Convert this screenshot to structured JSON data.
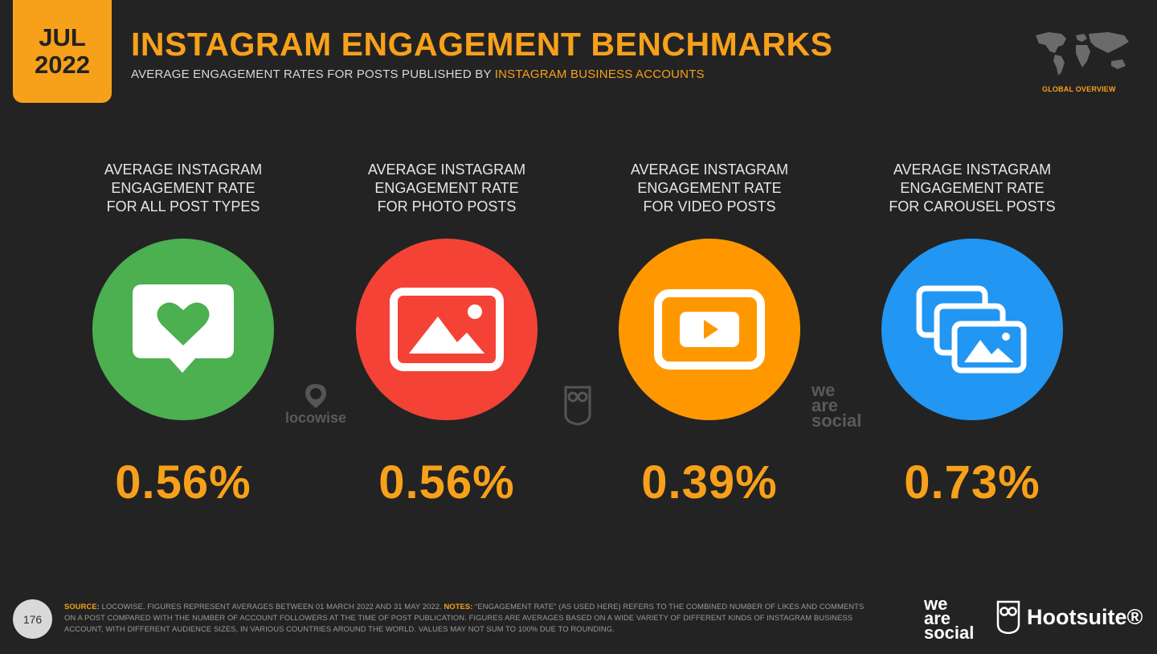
{
  "header": {
    "month": "JUL",
    "year": "2022",
    "title": "INSTAGRAM ENGAGEMENT BENCHMARKS",
    "subtitle_prefix": "AVERAGE ENGAGEMENT RATES FOR POSTS PUBLISHED BY ",
    "subtitle_highlight": "INSTAGRAM BUSINESS ACCOUNTS",
    "region": "GLOBAL OVERVIEW"
  },
  "chart_data": {
    "type": "table",
    "categories": [
      "AVERAGE INSTAGRAM ENGAGEMENT RATE FOR ALL POST TYPES",
      "AVERAGE INSTAGRAM ENGAGEMENT RATE FOR PHOTO POSTS",
      "AVERAGE INSTAGRAM ENGAGEMENT RATE FOR VIDEO POSTS",
      "AVERAGE INSTAGRAM ENGAGEMENT RATE FOR CAROUSEL POSTS"
    ],
    "values": [
      0.56,
      0.56,
      0.39,
      0.73
    ],
    "unit": "%"
  },
  "stats": [
    {
      "label_lines": [
        "AVERAGE INSTAGRAM",
        "ENGAGEMENT RATE",
        "FOR ALL POST TYPES"
      ],
      "value": "0.56%",
      "icon": "heart-speech-bubble-icon",
      "color": "#4caf50"
    },
    {
      "label_lines": [
        "AVERAGE INSTAGRAM",
        "ENGAGEMENT RATE",
        "FOR PHOTO POSTS"
      ],
      "value": "0.56%",
      "icon": "photo-icon",
      "color": "#f44336"
    },
    {
      "label_lines": [
        "AVERAGE INSTAGRAM",
        "ENGAGEMENT RATE",
        "FOR VIDEO POSTS"
      ],
      "value": "0.39%",
      "icon": "video-play-icon",
      "color": "#ff9800"
    },
    {
      "label_lines": [
        "AVERAGE INSTAGRAM",
        "ENGAGEMENT RATE",
        "FOR CAROUSEL POSTS"
      ],
      "value": "0.73%",
      "icon": "carousel-icon",
      "color": "#2196f3"
    }
  ],
  "watermarks": {
    "locowise": "locowise",
    "we_are_social": [
      "we",
      "are",
      "social"
    ]
  },
  "footer": {
    "page_number": "176",
    "source_key": "SOURCE:",
    "source_text": " LOCOWISE. FIGURES REPRESENT AVERAGES BETWEEN 01 MARCH 2022 AND 31 MAY 2022. ",
    "notes_key": "NOTES:",
    "notes_text": " “ENGAGEMENT RATE” (AS USED HERE) REFERS TO THE COMBINED NUMBER OF LIKES AND COMMENTS ON A POST COMPARED WITH THE NUMBER OF ACCOUNT FOLLOWERS AT THE TIME OF POST PUBLICATION. FIGURES ARE AVERAGES BASED ON A WIDE VARIETY OF DIFFERENT KINDS OF INSTAGRAM BUSINESS ACCOUNT, WITH DIFFERENT AUDIENCE SIZES, IN VARIOUS COUNTRIES AROUND THE WORLD. VALUES MAY NOT SUM TO 100% DUE TO ROUNDING.",
    "brand_we_are_social": [
      "we",
      "are",
      "social"
    ],
    "brand_hootsuite": "Hootsuite®"
  }
}
